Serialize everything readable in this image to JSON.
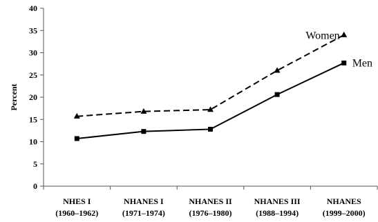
{
  "chart_data": {
    "type": "line",
    "title": "",
    "xlabel": "",
    "ylabel": "Percent",
    "ylim": [
      0,
      40
    ],
    "yticks": [
      "0",
      "5",
      "10",
      "15",
      "20",
      "25",
      "30",
      "35",
      "40"
    ],
    "categories": [
      {
        "line1": "NHES I",
        "line2": "(1960–1962)"
      },
      {
        "line1": "NHANES I",
        "line2": "(1971–1974)"
      },
      {
        "line1": "NHANES II",
        "line2": "(1976–1980)"
      },
      {
        "line1": "NHANES III",
        "line2": "(1988–1994)"
      },
      {
        "line1": "NHANES",
        "line2": "(1999–2000)"
      }
    ],
    "series": [
      {
        "name": "Women",
        "values": [
          15.7,
          16.8,
          17.2,
          26.0,
          34.0
        ],
        "line_style": "dashed",
        "marker": "triangle",
        "color": "#000000"
      },
      {
        "name": "Men",
        "values": [
          10.7,
          12.3,
          12.8,
          20.6,
          27.7
        ],
        "line_style": "solid",
        "marker": "square",
        "color": "#000000"
      }
    ],
    "grid": false,
    "legend": "inline labels near series ends"
  }
}
